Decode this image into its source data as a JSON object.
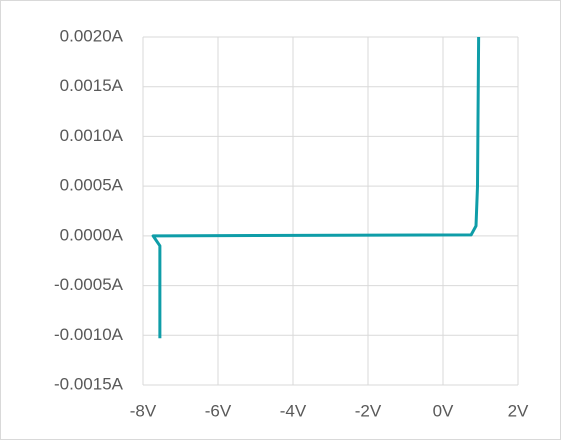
{
  "chart_data": {
    "type": "line",
    "x": [
      -7.55,
      -7.55,
      -7.73,
      -7.5,
      0.75,
      0.88,
      0.92,
      0.95
    ],
    "series": [
      {
        "color": "#0f9da8",
        "values": [
          -0.00103,
          -0.0001,
          0,
          0,
          1e-05,
          0.0001,
          0.0005,
          0.002
        ]
      }
    ],
    "xlim": [
      -8,
      2
    ],
    "xticks": [
      {
        "value": -8,
        "label": "-8V"
      },
      {
        "value": -6,
        "label": "-6V"
      },
      {
        "value": -4,
        "label": "-4V"
      },
      {
        "value": -2,
        "label": "-2V"
      },
      {
        "value": 0,
        "label": "0V"
      },
      {
        "value": 2,
        "label": "2V"
      }
    ],
    "ylim": [
      -0.0015,
      0.002
    ],
    "yticks": [
      {
        "value": -0.0015,
        "label": "-0.0015A"
      },
      {
        "value": -0.001,
        "label": "-0.0010A"
      },
      {
        "value": -0.0005,
        "label": "-0.0005A"
      },
      {
        "value": 0,
        "label": "0.0000A"
      },
      {
        "value": 0.0005,
        "label": "0.0005A"
      },
      {
        "value": 0.001,
        "label": "0.0010A"
      },
      {
        "value": 0.0015,
        "label": "0.0015A"
      },
      {
        "value": 0.002,
        "label": "0.0020A"
      }
    ],
    "grid": true
  }
}
